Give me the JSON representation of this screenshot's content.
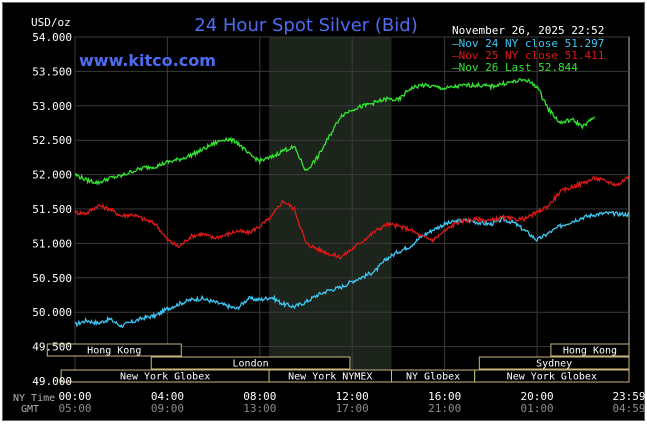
{
  "chart_data": {
    "type": "line",
    "title": "24 Hour Spot Silver (Bid)",
    "site": "www.kitco.com",
    "timestamp": "November 26, 2025 22:52",
    "ylabel": "USD/oz",
    "ylim": [
      49.0,
      54.0
    ],
    "y_ticks": [
      "54.000",
      "53.500",
      "53.000",
      "52.500",
      "52.000",
      "51.500",
      "51.000",
      "50.500",
      "50.000",
      "49.500",
      "49.000"
    ],
    "x_ticks_ny": [
      "00:00",
      "04:00",
      "08:00",
      "12:00",
      "16:00",
      "20:00",
      "23:59"
    ],
    "x_ticks_gmt": [
      "05:00",
      "09:00",
      "13:00",
      "17:00",
      "21:00",
      "01:00",
      "04:59"
    ],
    "x_row_label_ny": "NY Time",
    "x_row_label_gmt": "GMT",
    "grid": true,
    "legend_position": "top-right",
    "legend": [
      {
        "label": "Nov 24 NY close 51.297",
        "color": "#3ec8f5"
      },
      {
        "label": "Nov 25 NY close 51.411",
        "color": "#e01818"
      },
      {
        "label": "Nov 26 Last 52.844",
        "color": "#33e633"
      }
    ],
    "series": [
      {
        "name": "Nov 24",
        "color": "#3ec8f5",
        "x": [
          0,
          0.5,
          1,
          1.5,
          2,
          2.5,
          3,
          3.5,
          4,
          4.5,
          5,
          5.5,
          6,
          6.5,
          7,
          7.5,
          8,
          8.5,
          9,
          9.5,
          10,
          10.5,
          11,
          11.5,
          12,
          12.5,
          13,
          13.5,
          14,
          14.5,
          15,
          15.5,
          16,
          16.5,
          17,
          17.5,
          18,
          18.5,
          19,
          19.5,
          20,
          20.5,
          21,
          21.5,
          22,
          22.5,
          23,
          23.5,
          23.98
        ],
        "values": [
          49.82,
          49.88,
          49.84,
          49.9,
          49.8,
          49.86,
          49.92,
          49.95,
          50.05,
          50.12,
          50.18,
          50.2,
          50.15,
          50.1,
          50.05,
          50.2,
          50.18,
          50.22,
          50.12,
          50.08,
          50.15,
          50.25,
          50.32,
          50.36,
          50.45,
          50.52,
          50.6,
          50.78,
          50.88,
          50.96,
          51.1,
          51.2,
          51.28,
          51.32,
          51.34,
          51.3,
          51.28,
          51.35,
          51.3,
          51.18,
          51.05,
          51.15,
          51.25,
          51.32,
          51.38,
          51.42,
          51.44,
          51.43,
          51.42
        ]
      },
      {
        "name": "Nov 25",
        "color": "#e01818",
        "x": [
          0,
          0.5,
          1,
          1.5,
          2,
          2.5,
          3,
          3.5,
          4,
          4.5,
          5,
          5.5,
          6,
          6.5,
          7,
          7.5,
          8,
          8.5,
          9,
          9.5,
          10,
          10.5,
          11,
          11.5,
          12,
          12.5,
          13,
          13.5,
          14,
          14.5,
          15,
          15.5,
          16,
          16.5,
          17,
          17.5,
          18,
          18.5,
          19,
          19.5,
          20,
          20.5,
          21,
          21.5,
          22,
          22.5,
          23,
          23.5,
          23.98
        ],
        "values": [
          51.45,
          51.44,
          51.55,
          51.5,
          51.4,
          51.42,
          51.35,
          51.28,
          51.05,
          50.95,
          51.1,
          51.14,
          51.08,
          51.12,
          51.18,
          51.15,
          51.25,
          51.38,
          51.62,
          51.5,
          51.0,
          50.92,
          50.85,
          50.8,
          50.92,
          51.05,
          51.18,
          51.28,
          51.25,
          51.2,
          51.1,
          51.05,
          51.18,
          51.3,
          51.34,
          51.35,
          51.33,
          51.38,
          51.35,
          51.36,
          51.45,
          51.55,
          51.75,
          51.82,
          51.88,
          51.95,
          51.9,
          51.85,
          51.98
        ]
      },
      {
        "name": "Nov 26",
        "color": "#33e633",
        "x": [
          0,
          0.5,
          1,
          1.5,
          2,
          2.5,
          3,
          3.5,
          4,
          4.5,
          5,
          5.5,
          6,
          6.5,
          7,
          7.5,
          8,
          8.5,
          9,
          9.5,
          10,
          10.5,
          11,
          11.5,
          12,
          12.5,
          13,
          13.5,
          14,
          14.5,
          15,
          15.5,
          16,
          16.5,
          17,
          17.5,
          18,
          18.5,
          19,
          19.5,
          20,
          20.5,
          21,
          21.5,
          22,
          22.5
        ],
        "values": [
          52.0,
          51.92,
          51.88,
          51.95,
          51.98,
          52.05,
          52.1,
          52.12,
          52.18,
          52.22,
          52.28,
          52.36,
          52.45,
          52.52,
          52.48,
          52.3,
          52.2,
          52.25,
          52.35,
          52.4,
          52.05,
          52.25,
          52.55,
          52.85,
          52.95,
          53.0,
          53.05,
          53.1,
          53.08,
          53.25,
          53.3,
          53.28,
          53.25,
          53.28,
          53.3,
          53.3,
          53.28,
          53.32,
          53.35,
          53.38,
          53.28,
          52.95,
          52.75,
          52.8,
          52.7,
          52.84
        ]
      }
    ],
    "sessions": [
      {
        "name": "Hong Kong",
        "row": 0,
        "start": -1.2,
        "end": 4.6
      },
      {
        "name": "Hong Kong",
        "row": 0,
        "start": 20.6,
        "end": 23.98
      },
      {
        "name": "London",
        "row": 1,
        "start": 3.3,
        "end": 11.9
      },
      {
        "name": "Sydney",
        "row": 1,
        "start": 17.5,
        "end": 23.98
      },
      {
        "name": "New York Globex",
        "row": 2,
        "start": -0.6,
        "end": 8.4
      },
      {
        "name": "New York NYMEX",
        "row": 2,
        "start": 8.4,
        "end": 13.7
      },
      {
        "name": "NY Globex",
        "row": 2,
        "start": 13.7,
        "end": 17.3
      },
      {
        "name": "New York Globex",
        "row": 2,
        "start": 17.3,
        "end": 23.98
      }
    ],
    "highlight_span": [
      8.4,
      13.7
    ]
  }
}
